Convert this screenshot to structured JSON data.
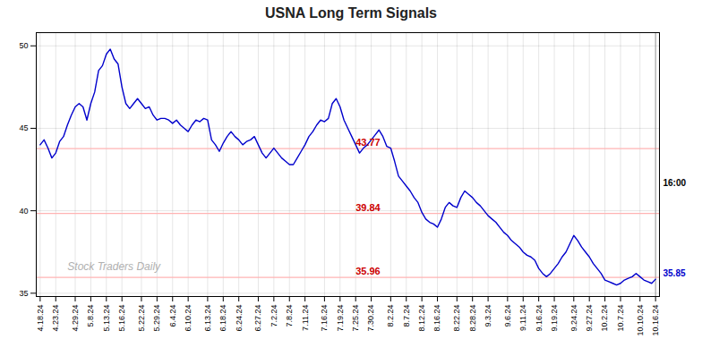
{
  "chart_data": {
    "type": "line",
    "title": "USNA Long Term Signals",
    "categories": [
      "4.18.24",
      null,
      null,
      null,
      "4.23.24",
      null,
      null,
      null,
      null,
      "4.29.24",
      null,
      null,
      null,
      "5.8.24",
      null,
      null,
      null,
      "5.13.24",
      null,
      null,
      null,
      "5.16.24",
      null,
      null,
      null,
      null,
      "5.22.24",
      null,
      null,
      null,
      "5.29.24",
      null,
      null,
      null,
      "6.4.24",
      null,
      null,
      null,
      "6.10.24",
      null,
      null,
      null,
      null,
      "6.13.24",
      null,
      null,
      null,
      "6.18.24",
      null,
      null,
      null,
      "6.24.24",
      null,
      null,
      null,
      null,
      "6.27.24",
      null,
      null,
      null,
      "7.2.24",
      null,
      null,
      null,
      "7.8.24",
      null,
      null,
      null,
      "7.11.24",
      null,
      null,
      null,
      null,
      "7.16.24",
      null,
      null,
      null,
      "7.19.24",
      null,
      null,
      null,
      "7.25.24",
      null,
      null,
      null,
      "7.30.24",
      null,
      null,
      null,
      null,
      "8.2.24",
      null,
      null,
      null,
      "8.7.24",
      null,
      null,
      null,
      "8.12.24",
      null,
      null,
      null,
      "8.16.24",
      null,
      null,
      null,
      null,
      "8.22.24",
      null,
      null,
      null,
      "8.28.24",
      null,
      null,
      null,
      "9.3.24",
      null,
      null,
      null,
      null,
      "9.6.24",
      null,
      null,
      null,
      "9.11.24",
      null,
      null,
      null,
      "9.16.24",
      null,
      null,
      null,
      "9.19.24",
      null,
      null,
      null,
      null,
      "9.24.24",
      null,
      null,
      null,
      "9.27.24",
      null,
      null,
      null,
      "10.2.24",
      null,
      null,
      null,
      "10.7.24",
      null,
      null,
      null,
      null,
      "10.10.24",
      null,
      null,
      null,
      "10.16.24"
    ],
    "values": [
      44.0,
      44.3,
      43.8,
      43.2,
      43.5,
      44.2,
      44.5,
      45.2,
      45.8,
      46.3,
      46.5,
      46.3,
      45.5,
      46.5,
      47.2,
      48.5,
      48.8,
      49.5,
      49.8,
      49.2,
      48.9,
      47.5,
      46.5,
      46.2,
      46.5,
      46.8,
      46.5,
      46.2,
      46.3,
      45.8,
      45.5,
      45.6,
      45.6,
      45.5,
      45.3,
      45.5,
      45.2,
      45.0,
      44.8,
      45.2,
      45.5,
      45.4,
      45.6,
      45.5,
      44.3,
      44.0,
      43.6,
      44.1,
      44.5,
      44.8,
      44.5,
      44.3,
      44.0,
      44.2,
      44.3,
      44.5,
      44.0,
      43.5,
      43.2,
      43.5,
      43.8,
      43.5,
      43.2,
      43.0,
      42.8,
      42.8,
      43.2,
      43.6,
      44.0,
      44.5,
      44.8,
      45.2,
      45.5,
      45.4,
      45.6,
      46.5,
      46.8,
      46.3,
      45.5,
      45.0,
      44.5,
      44.0,
      43.5,
      43.8,
      44.0,
      44.3,
      44.6,
      44.9,
      44.5,
      43.9,
      43.8,
      43.0,
      42.1,
      41.8,
      41.5,
      41.2,
      40.8,
      40.5,
      39.9,
      39.5,
      39.3,
      39.2,
      39.0,
      39.5,
      40.2,
      40.5,
      40.3,
      40.2,
      40.8,
      41.2,
      41.0,
      40.8,
      40.5,
      40.3,
      40.0,
      39.7,
      39.5,
      39.3,
      39.0,
      38.7,
      38.5,
      38.2,
      38.0,
      37.8,
      37.5,
      37.3,
      37.2,
      37.0,
      36.5,
      36.2,
      36.0,
      36.2,
      36.5,
      36.8,
      37.2,
      37.5,
      38.0,
      38.5,
      38.2,
      37.8,
      37.5,
      37.2,
      36.8,
      36.5,
      36.2,
      35.8,
      35.7,
      35.6,
      35.5,
      35.6,
      35.8,
      35.9,
      36.0,
      36.2,
      36.0,
      35.8,
      35.7,
      35.6,
      35.85
    ],
    "color": "#0000cc",
    "ylim": [
      34.8,
      50.8
    ],
    "yticks": [
      35,
      40,
      45,
      50
    ],
    "grid": true,
    "hlines": [
      {
        "y": 43.77,
        "color": "#ffb3b3"
      },
      {
        "y": 39.84,
        "color": "#ffb3b3"
      },
      {
        "y": 35.96,
        "color": "#ffb3b3"
      }
    ],
    "annotations": [
      {
        "text": "43.77",
        "y": 43.77,
        "color": "#cc0000"
      },
      {
        "text": "39.84",
        "y": 39.84,
        "color": "#cc0000"
      },
      {
        "text": "35.96",
        "y": 35.96,
        "color": "#cc0000"
      },
      {
        "text": "16:00",
        "color": "#000000"
      },
      {
        "text": "35.85",
        "color": "#0000cc"
      }
    ],
    "watermark": "Stock Traders Daily"
  }
}
